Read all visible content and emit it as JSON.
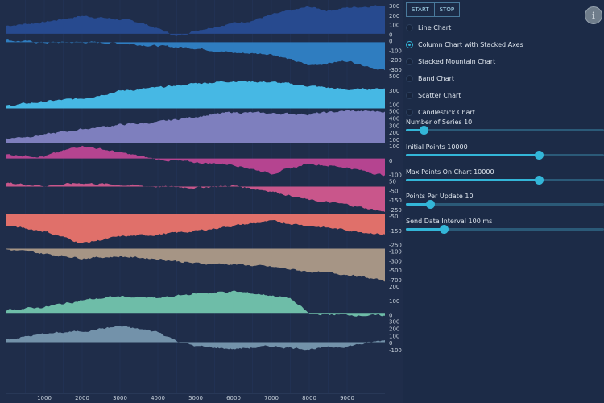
{
  "toolbar": {
    "start_label": "START",
    "stop_label": "STOP"
  },
  "chart_types": [
    {
      "label": "Line Chart",
      "selected": false
    },
    {
      "label": "Column Chart with Stacked Axes",
      "selected": true
    },
    {
      "label": "Stacked Mountain Chart",
      "selected": false
    },
    {
      "label": "Band Chart",
      "selected": false
    },
    {
      "label": "Scatter Chart",
      "selected": false
    },
    {
      "label": "Candlestick Chart",
      "selected": false
    }
  ],
  "sliders": [
    {
      "label": "Number of Series 10",
      "fraction": 0.09
    },
    {
      "label": "Initial Points 10000",
      "fraction": 0.67
    },
    {
      "label": "Max Points On Chart 10000",
      "fraction": 0.67
    },
    {
      "label": "Points Per Update 10",
      "fraction": 0.12
    },
    {
      "label": "Send Data Interval 100 ms",
      "fraction": 0.19
    }
  ],
  "info_icon": "info-icon",
  "chart_data": {
    "type": "area",
    "x_ticks": [
      "1000",
      "2000",
      "3000",
      "4000",
      "5000",
      "6000",
      "7000",
      "8000",
      "9000"
    ],
    "xlim": [
      0,
      10000
    ],
    "series": [
      {
        "color": "#274a8f",
        "ticks": [
          "300",
          "200",
          "100",
          "0"
        ],
        "ylim": [
          -50,
          340
        ],
        "anchors": [
          [
            0,
            90
          ],
          [
            1000,
            130
          ],
          [
            2000,
            200
          ],
          [
            3000,
            160
          ],
          [
            3500,
            130
          ],
          [
            4000,
            60
          ],
          [
            4500,
            -30
          ],
          [
            5000,
            40
          ],
          [
            6000,
            120
          ],
          [
            6500,
            150
          ],
          [
            7000,
            210
          ],
          [
            8000,
            300
          ],
          [
            8500,
            260
          ],
          [
            9000,
            290
          ],
          [
            10000,
            320
          ]
        ]
      },
      {
        "color": "#2f7dc0",
        "ticks": [
          "0",
          "-100",
          "-200",
          "-300"
        ],
        "ylim": [
          -320,
          40
        ],
        "anchors": [
          [
            0,
            20
          ],
          [
            1000,
            -5
          ],
          [
            2000,
            0
          ],
          [
            3000,
            -10
          ],
          [
            4000,
            -40
          ],
          [
            5000,
            -60
          ],
          [
            6000,
            -110
          ],
          [
            7000,
            -120
          ],
          [
            8000,
            -240
          ],
          [
            9000,
            -190
          ],
          [
            10000,
            -290
          ]
        ]
      },
      {
        "color": "#46b8e4",
        "ticks": [
          "500",
          "300",
          "100"
        ],
        "ylim": [
          0,
          560
        ],
        "anchors": [
          [
            0,
            40
          ],
          [
            1000,
            110
          ],
          [
            2000,
            160
          ],
          [
            3000,
            280
          ],
          [
            4000,
            330
          ],
          [
            5000,
            400
          ],
          [
            6000,
            440
          ],
          [
            7000,
            420
          ],
          [
            8000,
            360
          ],
          [
            9000,
            300
          ],
          [
            10000,
            320
          ]
        ]
      },
      {
        "color": "#7e7fbe",
        "ticks": [
          "500",
          "400",
          "300",
          "200",
          "100"
        ],
        "ylim": [
          0,
          560
        ],
        "anchors": [
          [
            0,
            80
          ],
          [
            1000,
            140
          ],
          [
            2000,
            230
          ],
          [
            3000,
            300
          ],
          [
            4000,
            340
          ],
          [
            5000,
            430
          ],
          [
            6000,
            500
          ],
          [
            7000,
            480
          ],
          [
            8000,
            470
          ],
          [
            9000,
            520
          ],
          [
            10000,
            510
          ]
        ]
      },
      {
        "color": "#b54490",
        "ticks": [
          "100",
          "0",
          "-100"
        ],
        "ylim": [
          -200,
          150
        ],
        "anchors": [
          [
            0,
            40
          ],
          [
            1000,
            20
          ],
          [
            2000,
            130
          ],
          [
            3000,
            60
          ],
          [
            4000,
            -10
          ],
          [
            5000,
            -40
          ],
          [
            6000,
            -60
          ],
          [
            7000,
            -150
          ],
          [
            8000,
            -50
          ],
          [
            9000,
            -90
          ],
          [
            10000,
            -170
          ]
        ]
      },
      {
        "color": "#c9568b",
        "ticks": [
          "50",
          "-50",
          "-150",
          "-250"
        ],
        "ylim": [
          -300,
          90
        ],
        "anchors": [
          [
            0,
            40
          ],
          [
            1000,
            10
          ],
          [
            2000,
            40
          ],
          [
            3000,
            20
          ],
          [
            4000,
            0
          ],
          [
            5000,
            -10
          ],
          [
            6000,
            10
          ],
          [
            7000,
            -50
          ],
          [
            8000,
            -150
          ],
          [
            9000,
            -200
          ],
          [
            10000,
            -280
          ]
        ]
      },
      {
        "color": "#e0706a",
        "ticks": [
          "-50",
          "-150",
          "-250"
        ],
        "ylim": [
          -330,
          -10
        ],
        "anchors": [
          [
            0,
            -120
          ],
          [
            1000,
            -170
          ],
          [
            2000,
            -280
          ],
          [
            3000,
            -220
          ],
          [
            4000,
            -200
          ],
          [
            5000,
            -170
          ],
          [
            6000,
            -120
          ],
          [
            7000,
            -80
          ],
          [
            8000,
            -120
          ],
          [
            9000,
            -160
          ],
          [
            10000,
            -200
          ]
        ]
      },
      {
        "color": "#a69585",
        "ticks": [
          "-100",
          "-300",
          "-500",
          "-700"
        ],
        "ylim": [
          -900,
          0
        ],
        "anchors": [
          [
            0,
            -20
          ],
          [
            1000,
            -130
          ],
          [
            2000,
            -240
          ],
          [
            3000,
            -200
          ],
          [
            4000,
            -260
          ],
          [
            5000,
            -380
          ],
          [
            6000,
            -400
          ],
          [
            7000,
            -470
          ],
          [
            8000,
            -590
          ],
          [
            9000,
            -660
          ],
          [
            10000,
            -830
          ]
        ]
      },
      {
        "color": "#6ebda8",
        "ticks": [
          "200",
          "100",
          "0"
        ],
        "ylim": [
          -60,
          300
        ],
        "anchors": [
          [
            0,
            30
          ],
          [
            1000,
            60
          ],
          [
            2000,
            130
          ],
          [
            3000,
            170
          ],
          [
            4000,
            150
          ],
          [
            5000,
            200
          ],
          [
            6000,
            220
          ],
          [
            7000,
            180
          ],
          [
            7500,
            150
          ],
          [
            8000,
            -10
          ],
          [
            9000,
            -20
          ],
          [
            10000,
            -30
          ]
        ]
      },
      {
        "color": "#7392aa",
        "ticks": [
          "300",
          "200",
          "100",
          "0",
          "-100"
        ],
        "ylim": [
          -170,
          340
        ],
        "anchors": [
          [
            0,
            40
          ],
          [
            1000,
            120
          ],
          [
            2000,
            160
          ],
          [
            3000,
            230
          ],
          [
            4000,
            150
          ],
          [
            4500,
            20
          ],
          [
            5000,
            -60
          ],
          [
            6000,
            -100
          ],
          [
            7000,
            -60
          ],
          [
            8000,
            -100
          ],
          [
            9000,
            -60
          ],
          [
            10000,
            30
          ]
        ]
      }
    ]
  }
}
